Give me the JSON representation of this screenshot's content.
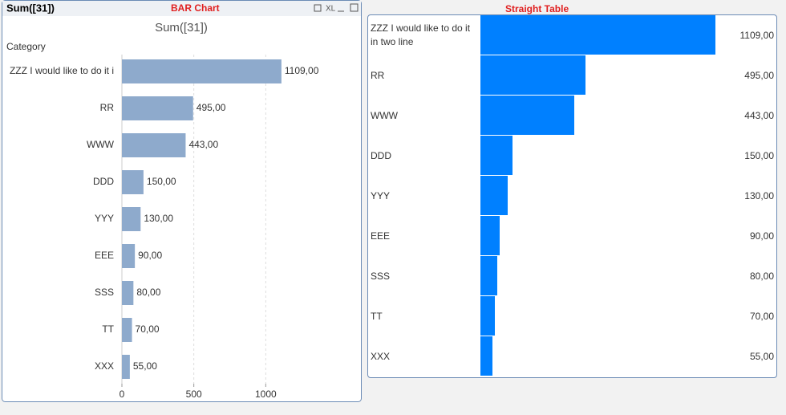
{
  "window_caption": "Sum([31])",
  "chart_label": "BAR Chart",
  "table_label": "Straight Table",
  "chart_data": {
    "type": "bar",
    "orientation": "horizontal",
    "title": "Sum([31])",
    "y_label": "Category",
    "categories": [
      "ZZZ I would like to do it i",
      "RR",
      "WWW",
      "DDD",
      "YYY",
      "EEE",
      "SSS",
      "TT",
      "XXX"
    ],
    "values": [
      1109,
      495,
      443,
      150,
      130,
      90,
      80,
      70,
      55
    ],
    "value_labels": [
      "1109,00",
      "495,00",
      "443,00",
      "150,00",
      "130,00",
      "90,00",
      "80,00",
      "70,00",
      "55,00"
    ],
    "color": "#8eaacc",
    "xlim": [
      0,
      1500
    ],
    "xticks": [
      0,
      500,
      1000
    ],
    "grid": true
  },
  "table": {
    "bar_color": "#0080ff",
    "rows": [
      {
        "category": "ZZZ I would like to do it in two line",
        "value": 1109,
        "value_label": "1109,00"
      },
      {
        "category": "RR",
        "value": 495,
        "value_label": "495,00"
      },
      {
        "category": "WWW",
        "value": 443,
        "value_label": "443,00"
      },
      {
        "category": "DDD",
        "value": 150,
        "value_label": "150,00"
      },
      {
        "category": "YYY",
        "value": 130,
        "value_label": "130,00"
      },
      {
        "category": "EEE",
        "value": 90,
        "value_label": "90,00"
      },
      {
        "category": "SSS",
        "value": 80,
        "value_label": "80,00"
      },
      {
        "category": "TT",
        "value": 70,
        "value_label": "70,00"
      },
      {
        "category": "XXX",
        "value": 55,
        "value_label": "55,00"
      }
    ]
  }
}
